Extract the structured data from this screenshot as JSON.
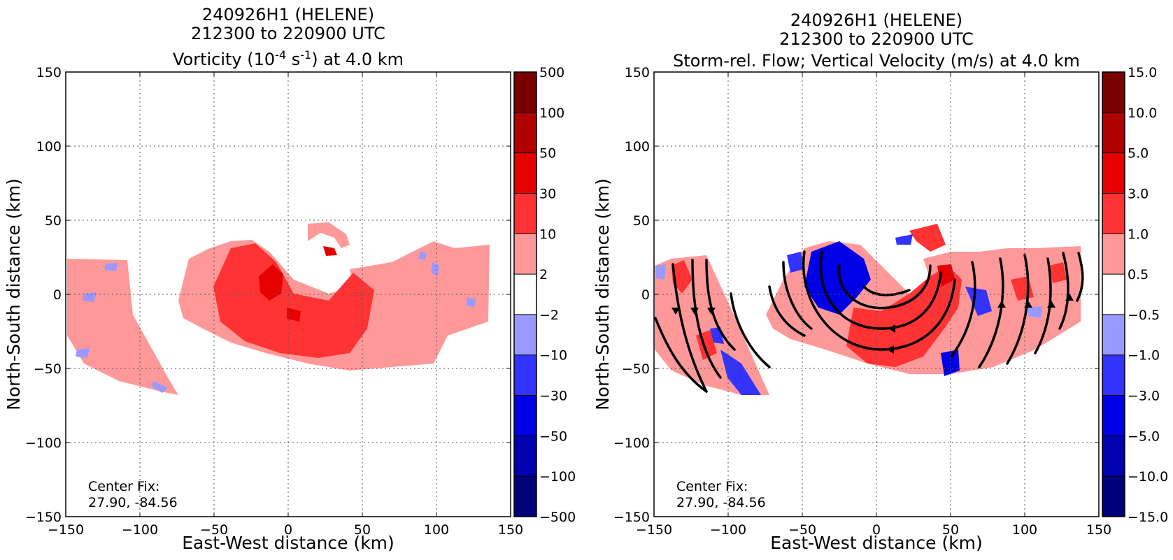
{
  "panels": [
    {
      "id": "vorticity",
      "title_line1": "240926H1 (HELENE)",
      "title_line2": "212300 to 220900 UTC",
      "title_line3_pre": "Vorticity (10",
      "title_line3_sup1": "-4",
      "title_line3_mid": " s",
      "title_line3_sup2": "-1",
      "title_line3_post": ") at 4.0 km",
      "xlabel": "East-West distance (km)",
      "ylabel": "North-South distance (km)",
      "center_fix_label": "Center Fix:",
      "center_fix_value": "27.90, -84.56",
      "colorbar_ticks": [
        "500",
        "100",
        "50",
        "30",
        "10",
        "2",
        "−2",
        "−10",
        "−30",
        "−50",
        "−100",
        "−500"
      ]
    },
    {
      "id": "vertical-velocity",
      "title_line1": "240926H1 (HELENE)",
      "title_line2": "212300 to 220900 UTC",
      "title_line3": "Storm-rel. Flow; Vertical Velocity (m/s) at 4.0 km",
      "xlabel": "East-West distance (km)",
      "ylabel": "North-South distance (km)",
      "center_fix_label": "Center Fix:",
      "center_fix_value": "27.90, -84.56",
      "colorbar_ticks": [
        "15.0",
        "10.0",
        "5.0",
        "3.0",
        "1.0",
        "0.5",
        "−0.5",
        "−1.0",
        "−3.0",
        "−5.0",
        "−10.0",
        "−15.0"
      ]
    }
  ],
  "colorbar_colors": [
    "#7a0000",
    "#b00000",
    "#e60000",
    "#ff3333",
    "#ff9999",
    "#ffffff",
    "#9999ff",
    "#3333ff",
    "#0000e6",
    "#0000b0",
    "#00007a"
  ],
  "chart_data": [
    {
      "type": "heatmap",
      "title": "240926H1 (HELENE) 212300 to 220900 UTC Vorticity (10^-4 s^-1) at 4.0 km",
      "xlabel": "East-West distance (km)",
      "ylabel": "North-South distance (km)",
      "xlim": [
        -150,
        150
      ],
      "ylim": [
        -150,
        150
      ],
      "xticks": [
        -150,
        -100,
        -50,
        0,
        50,
        100,
        150
      ],
      "yticks": [
        -150,
        -100,
        -50,
        0,
        50,
        100,
        150
      ],
      "grid": true,
      "colorbar_levels": [
        -500,
        -100,
        -50,
        -30,
        -10,
        -2,
        2,
        10,
        30,
        50,
        100,
        500
      ],
      "center_fix": [
        27.9,
        -84.56
      ],
      "features": [
        {
          "kind": "maximum",
          "x": -10,
          "y": 5,
          "value": 50
        },
        {
          "kind": "ring",
          "cx": 0,
          "cy": 0,
          "radius_km": 35,
          "value": 30
        }
      ]
    },
    {
      "type": "heatmap",
      "title": "240926H1 (HELENE) 212300 to 220900 UTC Storm-rel. Flow; Vertical Velocity (m/s) at 4.0 km",
      "xlabel": "East-West distance (km)",
      "ylabel": "North-South distance (km)",
      "xlim": [
        -150,
        150
      ],
      "ylim": [
        -150,
        150
      ],
      "xticks": [
        -150,
        -100,
        -50,
        0,
        50,
        100,
        150
      ],
      "yticks": [
        -150,
        -100,
        -50,
        0,
        50,
        100,
        150
      ],
      "grid": true,
      "colorbar_levels": [
        -15.0,
        -10.0,
        -5.0,
        -3.0,
        -1.0,
        -0.5,
        0.5,
        1.0,
        3.0,
        5.0,
        10.0,
        15.0
      ],
      "center_fix": [
        27.9,
        -84.56
      ],
      "streamlines": "cyclonic flow around storm center"
    }
  ]
}
